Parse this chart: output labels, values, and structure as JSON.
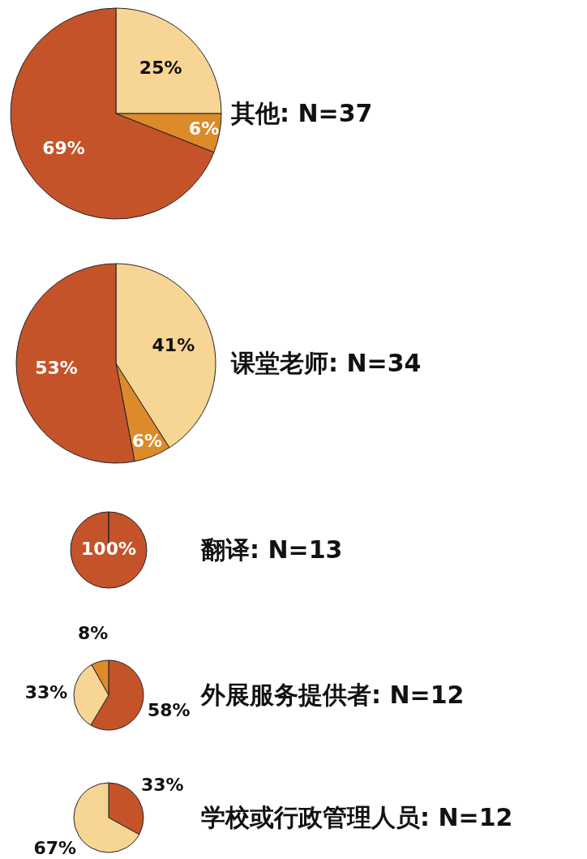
{
  "chart_data": [
    {
      "type": "pie",
      "title": "其他: N=37",
      "categories": [
        null,
        null,
        null
      ],
      "values": [
        25,
        6,
        69
      ],
      "colors": [
        "#f7d594",
        "#dc8a2a",
        "#c5532a"
      ],
      "value_labels": [
        "25%",
        "6%",
        "69%"
      ]
    },
    {
      "type": "pie",
      "title": "课堂老师: N=34",
      "categories": [
        null,
        null,
        null
      ],
      "values": [
        41,
        6,
        53
      ],
      "colors": [
        "#f7d594",
        "#dc8a2a",
        "#c5532a"
      ],
      "value_labels": [
        "41%",
        "6%",
        "53%"
      ]
    },
    {
      "type": "pie",
      "title": "翻译: N=13",
      "categories": [
        null
      ],
      "values": [
        100
      ],
      "colors": [
        "#c5532a"
      ],
      "value_labels": [
        "100%"
      ]
    },
    {
      "type": "pie",
      "title": "外展服务提供者: N=12",
      "categories": [
        null,
        null,
        null
      ],
      "values": [
        58,
        33,
        8
      ],
      "colors": [
        "#c5532a",
        "#f7d594",
        "#dc8a2a"
      ],
      "value_labels": [
        "58%",
        "33%",
        "8%"
      ]
    },
    {
      "type": "pie",
      "title": "学校或行政管理人员: N=12",
      "categories": [
        null,
        null
      ],
      "values": [
        33,
        67
      ],
      "colors": [
        "#c5532a",
        "#f7d594"
      ],
      "value_labels": [
        "33%",
        "67%"
      ]
    }
  ]
}
